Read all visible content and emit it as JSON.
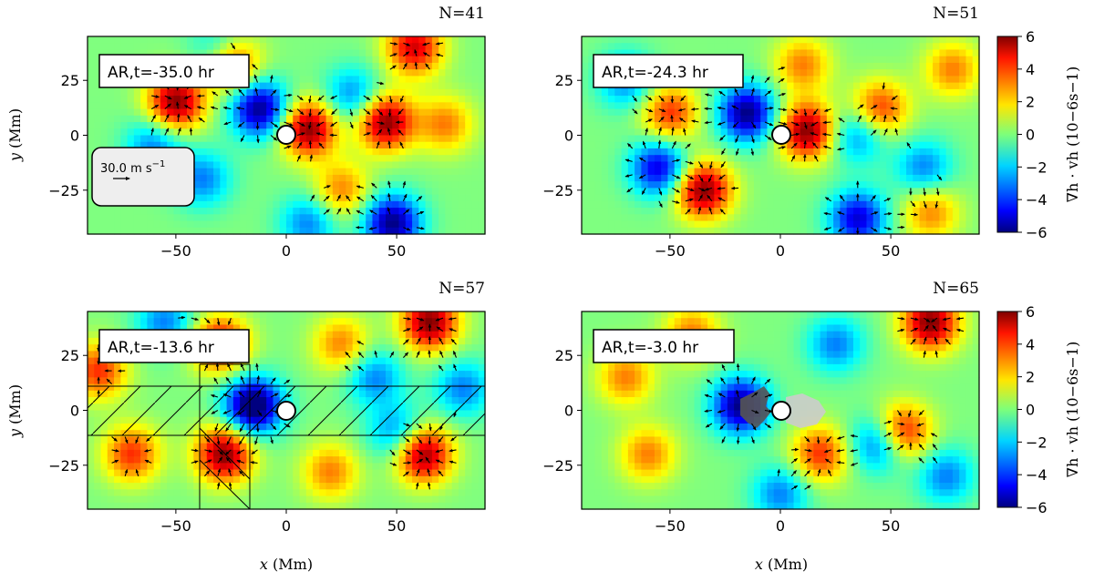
{
  "chart_data": [
    {
      "type": "heatmap",
      "panel_label": "N=41",
      "annotation": "AR,t=-35.0 hr",
      "reference_arrow": "30.0 m s",
      "reference_arrow_exp": "−1",
      "xlim": [
        -90,
        90
      ],
      "ylim": [
        -45,
        45
      ],
      "xticks": [
        -50,
        0,
        50
      ],
      "yticks": [
        25,
        0,
        -25
      ],
      "ylabel_var": "y",
      "ylabel_unit": " (Mm)",
      "xlabel_var": "",
      "xlabel_unit": "",
      "blobs": [
        {
          "x": -50,
          "y": 15,
          "v": 6
        },
        {
          "x": 10,
          "y": 3,
          "v": 6
        },
        {
          "x": 45,
          "y": 6,
          "v": 6
        },
        {
          "x": 58,
          "y": 40,
          "v": 5
        },
        {
          "x": -25,
          "y": 33,
          "v": 5
        },
        {
          "x": 72,
          "y": 5,
          "v": 3
        },
        {
          "x": -12,
          "y": 12,
          "v": -6
        },
        {
          "x": 48,
          "y": -40,
          "v": -6
        },
        {
          "x": -60,
          "y": -5,
          "v": -3
        },
        {
          "x": -38,
          "y": -20,
          "v": -3
        },
        {
          "x": 30,
          "y": 18,
          "v": -3
        },
        {
          "x": 25,
          "y": -25,
          "v": 3
        },
        {
          "x": 10,
          "y": -40,
          "v": -3
        },
        {
          "x": -30,
          "y": 38,
          "v": -3
        }
      ]
    },
    {
      "type": "heatmap",
      "panel_label": "N=51",
      "annotation": "AR,t=-24.3 hr",
      "xlim": [
        -90,
        90
      ],
      "ylim": [
        -45,
        45
      ],
      "xticks": [
        -50,
        0,
        50
      ],
      "yticks": [
        25,
        0,
        -25
      ],
      "ylabel_var": "",
      "ylabel_unit": "",
      "xlabel_var": "",
      "xlabel_unit": "",
      "blobs": [
        {
          "x": -35,
          "y": -25,
          "v": 6
        },
        {
          "x": 12,
          "y": 2,
          "v": 6
        },
        {
          "x": -50,
          "y": 10,
          "v": 4
        },
        {
          "x": 45,
          "y": 12,
          "v": 4
        },
        {
          "x": 10,
          "y": 32,
          "v": 3
        },
        {
          "x": -15,
          "y": 10,
          "v": -6
        },
        {
          "x": -55,
          "y": -15,
          "v": -5
        },
        {
          "x": 35,
          "y": -38,
          "v": -5
        },
        {
          "x": 35,
          "y": 0,
          "v": -3
        },
        {
          "x": 65,
          "y": -15,
          "v": -3
        },
        {
          "x": -70,
          "y": 25,
          "v": -3
        },
        {
          "x": 78,
          "y": 30,
          "v": 3
        },
        {
          "x": 68,
          "y": -35,
          "v": 3
        }
      ]
    },
    {
      "type": "heatmap",
      "panel_label": "N=57",
      "annotation": "AR,t=-13.6 hr",
      "xlim": [
        -90,
        90
      ],
      "ylim": [
        -45,
        45
      ],
      "xticks": [
        -50,
        0,
        50
      ],
      "yticks": [
        25,
        0,
        -25
      ],
      "ylabel_var": "y",
      "ylabel_unit": " (Mm)",
      "xlabel_var": "x",
      "xlabel_unit": " (Mm)",
      "blobs": [
        {
          "x": -15,
          "y": 2,
          "v": -7
        },
        {
          "x": -28,
          "y": -20,
          "v": 6
        },
        {
          "x": -30,
          "y": 30,
          "v": 5
        },
        {
          "x": 65,
          "y": 40,
          "v": 6
        },
        {
          "x": 62,
          "y": -20,
          "v": 6
        },
        {
          "x": -70,
          "y": -20,
          "v": 4
        },
        {
          "x": -85,
          "y": 18,
          "v": 4
        },
        {
          "x": 40,
          "y": 15,
          "v": -3
        },
        {
          "x": 20,
          "y": -28,
          "v": 3
        },
        {
          "x": 80,
          "y": 10,
          "v": -3
        },
        {
          "x": 50,
          "y": -10,
          "v": -3
        },
        {
          "x": -55,
          "y": 40,
          "v": -3
        },
        {
          "x": 25,
          "y": 30,
          "v": 3
        }
      ]
    },
    {
      "type": "heatmap",
      "panel_label": "N=65",
      "annotation": "AR,t=-3.0 hr",
      "xlim": [
        -90,
        90
      ],
      "ylim": [
        -45,
        45
      ],
      "xticks": [
        -50,
        0,
        50
      ],
      "yticks": [
        25,
        0,
        -25
      ],
      "ylabel_var": "",
      "ylabel_unit": "",
      "xlabel_var": "x",
      "xlabel_unit": " (Mm)",
      "blobs": [
        {
          "x": 68,
          "y": 40,
          "v": 6
        },
        {
          "x": 55,
          "y": -10,
          "v": 5
        },
        {
          "x": -18,
          "y": 2,
          "v": -6
        },
        {
          "x": 18,
          "y": -20,
          "v": 4
        },
        {
          "x": 45,
          "y": -15,
          "v": -4
        },
        {
          "x": -60,
          "y": -20,
          "v": 3
        },
        {
          "x": -70,
          "y": 15,
          "v": 3
        },
        {
          "x": 25,
          "y": 30,
          "v": -3
        },
        {
          "x": 75,
          "y": -30,
          "v": -3
        },
        {
          "x": -40,
          "y": 35,
          "v": 3
        },
        {
          "x": 0,
          "y": -38,
          "v": -3
        }
      ]
    }
  ],
  "colorbar": {
    "ticks": [
      6,
      4,
      2,
      0,
      -2,
      -4,
      -6
    ],
    "label": "∇h · vh (10−6s−1)"
  }
}
